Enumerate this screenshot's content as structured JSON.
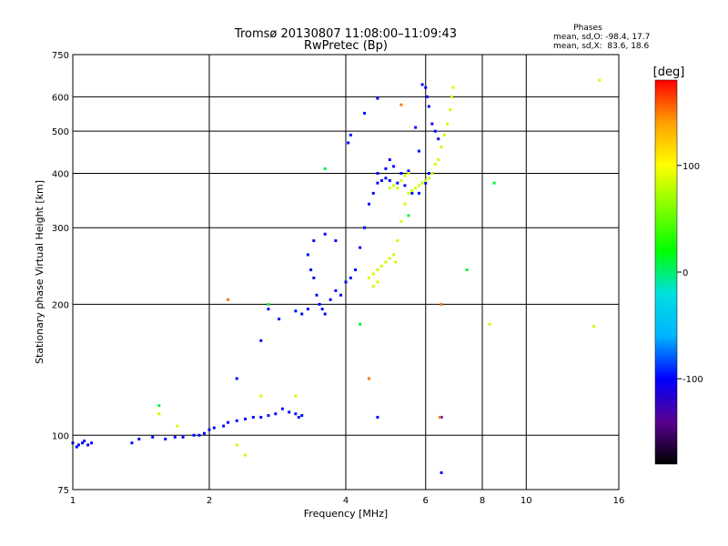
{
  "chart_data": {
    "type": "scatter",
    "title": "Tromsø 20130807 11:08:00–11:09:43",
    "subtitle": "RwPretec (Bp)",
    "xlabel": "Frequency [MHz]",
    "ylabel": "Stationary phase Virtual Height [km]",
    "x_scale": "log",
    "y_scale": "log",
    "xlim": [
      1,
      16
    ],
    "ylim": [
      75,
      750
    ],
    "x_ticks": [
      1,
      2,
      4,
      6,
      8,
      10,
      16
    ],
    "x_tick_labels": [
      "1",
      "2",
      "4",
      "6",
      "8",
      "10",
      "16"
    ],
    "y_ticks": [
      75,
      100,
      200,
      300,
      400,
      500,
      600,
      750
    ],
    "y_tick_labels": [
      "75",
      "100",
      "200",
      "300",
      "400",
      "500",
      "600",
      "750"
    ],
    "x_gridlines": [
      2,
      4,
      6,
      8,
      10
    ],
    "y_gridlines": [
      100,
      200,
      300,
      400,
      500,
      600
    ],
    "grid": true,
    "phases_box": {
      "title": "Phases",
      "line1": "mean, sd,O: -98.4, 17.7",
      "line2": "mean, sd,X:  83.6, 18.6"
    },
    "colorbar": {
      "label": "[deg]",
      "ticks": [
        100,
        0,
        -100
      ],
      "tick_labels": [
        "100",
        "0",
        "-100"
      ],
      "range": [
        -180,
        180
      ],
      "colors": [
        "#000000",
        "#5a0090",
        "#0000ff",
        "#00b4ff",
        "#00e0e0",
        "#00ff00",
        "#80ff00",
        "#ffff00",
        "#ffa000",
        "#ff0000"
      ]
    },
    "series": [
      {
        "phase": -98.4,
        "points": [
          [
            1.0,
            96
          ],
          [
            1.03,
            95
          ],
          [
            1.06,
            97
          ],
          [
            1.08,
            95
          ],
          [
            1.1,
            96
          ],
          [
            1.02,
            94
          ],
          [
            1.05,
            96
          ],
          [
            1.35,
            96
          ],
          [
            1.4,
            98
          ],
          [
            1.5,
            99
          ],
          [
            1.6,
            98
          ],
          [
            1.68,
            99
          ],
          [
            1.75,
            99
          ],
          [
            1.85,
            100
          ],
          [
            1.9,
            100
          ],
          [
            1.95,
            101
          ],
          [
            2.0,
            103
          ],
          [
            2.05,
            104
          ],
          [
            2.15,
            105
          ],
          [
            2.2,
            107
          ],
          [
            2.3,
            108
          ],
          [
            2.4,
            109
          ],
          [
            2.5,
            110
          ],
          [
            2.6,
            110
          ],
          [
            2.7,
            111
          ],
          [
            2.8,
            112
          ],
          [
            2.9,
            115
          ],
          [
            3.0,
            113
          ],
          [
            3.1,
            112
          ],
          [
            3.15,
            110
          ],
          [
            3.2,
            111
          ],
          [
            2.3,
            135
          ],
          [
            2.6,
            165
          ],
          [
            2.7,
            195
          ],
          [
            2.85,
            185
          ],
          [
            3.4,
            280
          ],
          [
            3.3,
            260
          ],
          [
            3.35,
            240
          ],
          [
            3.4,
            230
          ],
          [
            3.45,
            210
          ],
          [
            3.5,
            200
          ],
          [
            3.55,
            195
          ],
          [
            3.6,
            190
          ],
          [
            3.7,
            205
          ],
          [
            3.8,
            215
          ],
          [
            3.9,
            210
          ],
          [
            4.0,
            225
          ],
          [
            4.1,
            230
          ],
          [
            4.2,
            240
          ],
          [
            4.3,
            270
          ],
          [
            4.4,
            300
          ],
          [
            4.5,
            340
          ],
          [
            4.6,
            360
          ],
          [
            4.7,
            380
          ],
          [
            4.8,
            385
          ],
          [
            4.9,
            390
          ],
          [
            5.0,
            385
          ],
          [
            5.2,
            380
          ],
          [
            5.4,
            375
          ],
          [
            5.6,
            360
          ],
          [
            5.8,
            360
          ],
          [
            6.0,
            380
          ],
          [
            6.1,
            400
          ],
          [
            4.7,
            400
          ],
          [
            4.9,
            410
          ],
          [
            5.1,
            415
          ],
          [
            5.3,
            400
          ],
          [
            5.5,
            405
          ],
          [
            4.1,
            490
          ],
          [
            4.05,
            470
          ],
          [
            4.7,
            595
          ],
          [
            5.9,
            640
          ],
          [
            6.0,
            630
          ],
          [
            6.05,
            600
          ],
          [
            6.1,
            570
          ],
          [
            6.2,
            520
          ],
          [
            6.3,
            500
          ],
          [
            6.4,
            480
          ],
          [
            5.7,
            510
          ],
          [
            5.8,
            450
          ],
          [
            4.4,
            550
          ],
          [
            3.2,
            190
          ],
          [
            3.3,
            195
          ],
          [
            3.6,
            290
          ],
          [
            3.8,
            280
          ],
          [
            3.1,
            193
          ],
          [
            4.7,
            110
          ],
          [
            6.5,
            110
          ],
          [
            6.5,
            82
          ],
          [
            5.0,
            430
          ]
        ]
      },
      {
        "phase": 83.6,
        "points": [
          [
            4.5,
            230
          ],
          [
            4.6,
            235
          ],
          [
            4.7,
            240
          ],
          [
            4.8,
            245
          ],
          [
            4.9,
            250
          ],
          [
            5.0,
            255
          ],
          [
            5.1,
            260
          ],
          [
            5.15,
            250
          ],
          [
            5.2,
            280
          ],
          [
            5.3,
            310
          ],
          [
            5.4,
            340
          ],
          [
            5.5,
            360
          ],
          [
            5.6,
            365
          ],
          [
            5.7,
            370
          ],
          [
            5.8,
            375
          ],
          [
            5.9,
            380
          ],
          [
            6.0,
            385
          ],
          [
            6.1,
            390
          ],
          [
            6.2,
            400
          ],
          [
            6.3,
            420
          ],
          [
            6.4,
            430
          ],
          [
            6.5,
            460
          ],
          [
            6.6,
            490
          ],
          [
            6.7,
            520
          ],
          [
            6.8,
            560
          ],
          [
            6.85,
            600
          ],
          [
            6.9,
            630
          ],
          [
            5.2,
            370
          ],
          [
            5.3,
            385
          ],
          [
            5.4,
            395
          ],
          [
            5.5,
            400
          ],
          [
            5.0,
            370
          ],
          [
            5.1,
            375
          ],
          [
            4.6,
            220
          ],
          [
            4.7,
            225
          ],
          [
            14.5,
            655
          ],
          [
            8.3,
            180
          ],
          [
            14.1,
            178
          ],
          [
            1.55,
            112
          ],
          [
            1.7,
            105
          ],
          [
            2.3,
            95
          ],
          [
            2.4,
            90
          ],
          [
            2.6,
            123
          ],
          [
            3.1,
            123
          ]
        ]
      },
      {
        "phase": 10,
        "points": [
          [
            1.55,
            117
          ],
          [
            3.6,
            410
          ],
          [
            4.3,
            180
          ],
          [
            8.5,
            380
          ],
          [
            7.4,
            240
          ],
          [
            2.7,
            200
          ],
          [
            5.5,
            320
          ]
        ]
      },
      {
        "phase": 150,
        "points": [
          [
            2.2,
            205
          ],
          [
            4.5,
            135
          ],
          [
            5.3,
            575
          ],
          [
            6.5,
            200
          ],
          [
            6.45,
            110
          ]
        ]
      }
    ]
  }
}
